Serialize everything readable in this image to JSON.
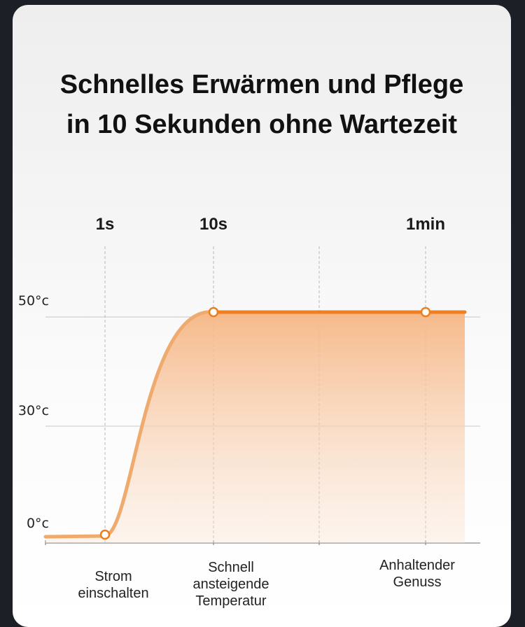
{
  "title_lines": [
    "Schnelles Erwärmen und Pflege",
    "in 10 Sekunden ohne Wartezeit"
  ],
  "colors": {
    "curve": "#efaa6e",
    "curve_dark": "#ef7f22",
    "marker": "#f07d1c",
    "fill_top": "#f6b684",
    "grid": "#c8c8c8",
    "axis": "#888888"
  },
  "chart_data": {
    "type": "area",
    "time_markers": [
      "1s",
      "10s",
      "1min"
    ],
    "y_ticks": [
      "0°c",
      "30°c",
      "50°c"
    ],
    "x_annotations": [
      [
        "Strom",
        "einschalten"
      ],
      [
        "Schnell",
        "ansteigende",
        "Temperatur"
      ],
      [
        "Anhaltender",
        "Genuss"
      ]
    ],
    "points": [
      {
        "t": "start",
        "temp": 0
      },
      {
        "t": "1s",
        "temp": 0
      },
      {
        "t": "10s",
        "temp": 50
      },
      {
        "t": "1min",
        "temp": 50
      }
    ],
    "highlighted_points": [
      {
        "t": "1s",
        "temp": 0
      },
      {
        "t": "10s",
        "temp": 50
      },
      {
        "t": "1min",
        "temp": 50
      }
    ],
    "grid": true
  }
}
